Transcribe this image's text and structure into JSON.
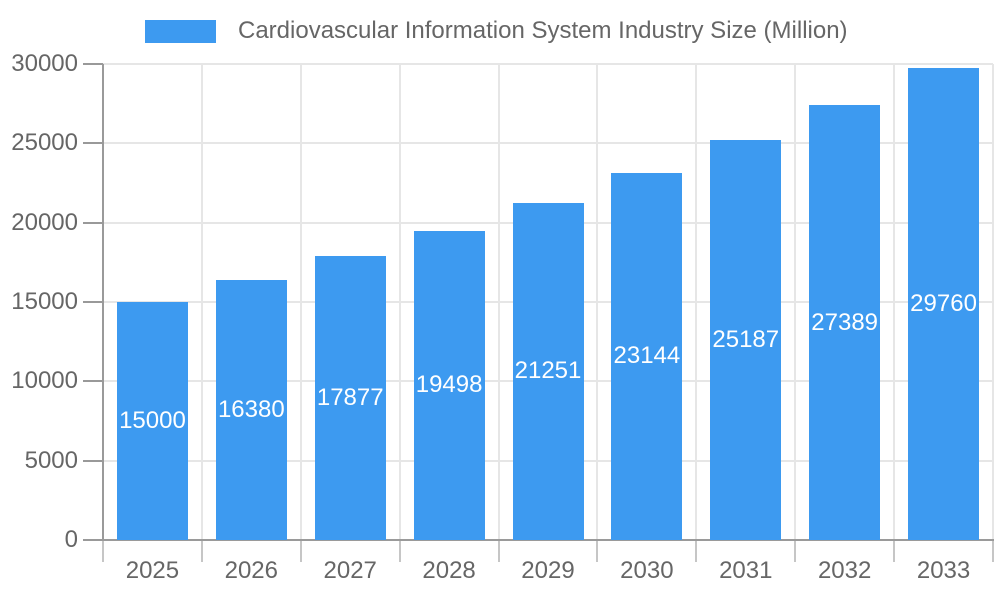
{
  "legend": {
    "label": "Cardiovascular Information System Industry Size (Million)"
  },
  "chart_data": {
    "type": "bar",
    "title": "Cardiovascular Information System Industry Size (Million)",
    "categories": [
      "2025",
      "2026",
      "2027",
      "2028",
      "2029",
      "2030",
      "2031",
      "2032",
      "2033"
    ],
    "values": [
      15000,
      16380,
      17877,
      19498,
      21251,
      23144,
      25187,
      27389,
      29760
    ],
    "xlabel": "",
    "ylabel": "",
    "ylim": [
      0,
      30000
    ],
    "yticks": [
      0,
      5000,
      10000,
      15000,
      20000,
      25000,
      30000
    ],
    "grid": true,
    "legend_position": "top",
    "colors": {
      "bar": "#3d9af0",
      "value_label": "#ffffff",
      "axis_text": "#666666",
      "axis_line": "#9a9a9a",
      "gridline": "#e6e6e6"
    }
  }
}
